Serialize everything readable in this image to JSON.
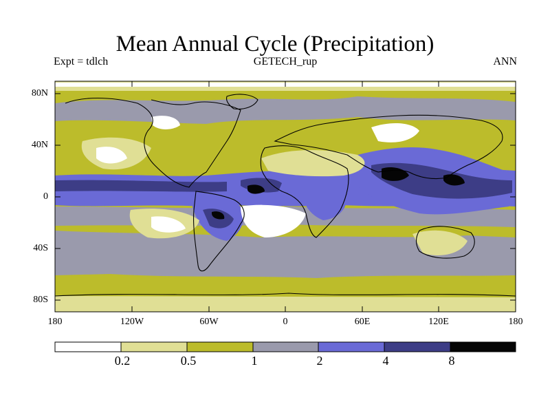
{
  "header": {
    "title": "Mean Annual Cycle (Precipitation)",
    "experiment": "Expt = tdlch",
    "dataset": "GETECH_rup",
    "period": "ANN"
  },
  "map": {
    "projection": "cylindrical equidistant",
    "latitude_ticks": [
      "80N",
      "40N",
      "0",
      "40S",
      "80S"
    ],
    "longitude_ticks": [
      "180",
      "120W",
      "60W",
      "0",
      "60E",
      "120E",
      "180"
    ],
    "coastlines": true
  },
  "colorbar": {
    "levels": [
      "0.2",
      "0.5",
      "1",
      "2",
      "4",
      "8"
    ],
    "colors": [
      "#ffffff",
      "#e0df95",
      "#bcbc2b",
      "#9a9aac",
      "#6a6ad6",
      "#3d3d86",
      "#050505"
    ]
  }
}
